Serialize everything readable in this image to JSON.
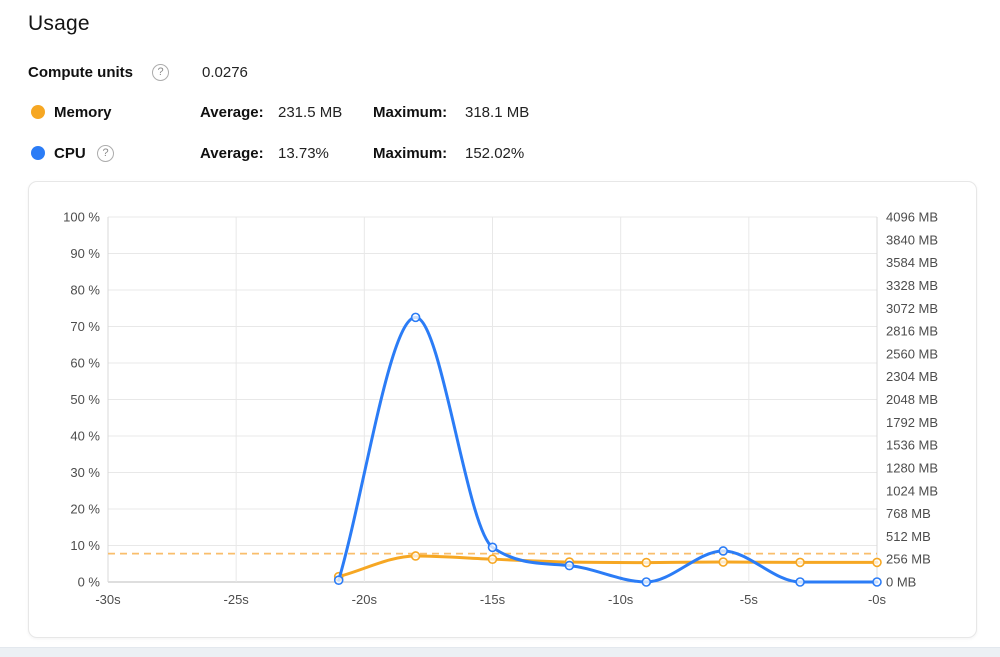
{
  "page": {
    "title": "Usage"
  },
  "icons": {
    "help": "?"
  },
  "colors": {
    "memory": "#F6A723",
    "cpu": "#2B7CF6",
    "memory_dashed": "#F9BE6B",
    "grid": "#E8E8E8",
    "axis_bottom": "#BDBDBD",
    "axis_border": "#D9D9D9",
    "tick_text": "#4D4D4D",
    "card_border": "#E7E7E7",
    "footer_strip": "#ECF0F4"
  },
  "stats": {
    "compute_units": {
      "label": "Compute units",
      "value": "0.0276"
    },
    "memory": {
      "label": "Memory",
      "average_label": "Average:",
      "average": "231.5 MB",
      "maximum_label": "Maximum:",
      "maximum": "318.1 MB"
    },
    "cpu": {
      "label": "CPU",
      "average_label": "Average:",
      "average": "13.73%",
      "maximum_label": "Maximum:",
      "maximum": "152.02%"
    }
  },
  "chart_data": {
    "type": "line",
    "x": [
      -21,
      -18,
      -15,
      -12,
      -9,
      -6,
      -3,
      0
    ],
    "x_unit": "s",
    "series": [
      {
        "name": "CPU",
        "color": "#2B7CF6",
        "axis": "left",
        "unit": "%",
        "values": [
          0.5,
          72.5,
          9.5,
          4.5,
          0,
          8.5,
          0,
          0
        ]
      },
      {
        "name": "Memory",
        "color": "#F6A723",
        "axis": "right",
        "unit": "MB",
        "values": [
          60,
          292,
          256,
          224,
          218,
          224,
          220,
          220
        ]
      }
    ],
    "left_axis": {
      "min": 0,
      "max": 100,
      "step": 10,
      "suffix": " %"
    },
    "right_axis": {
      "min": 0,
      "max": 4096,
      "step": 256,
      "suffix": " MB"
    },
    "x_axis": {
      "min": -30,
      "max": 0,
      "step": 5,
      "labels": [
        "-30s",
        "-25s",
        "-20s",
        "-15s",
        "-10s",
        "-5s",
        "-0s"
      ]
    },
    "dashed_line": {
      "axis": "right",
      "value_mb": 318.1,
      "color": "#F9BE6B"
    },
    "grid": true,
    "legend_position": "none",
    "title": "",
    "xlabel": "",
    "ylabel": ""
  }
}
